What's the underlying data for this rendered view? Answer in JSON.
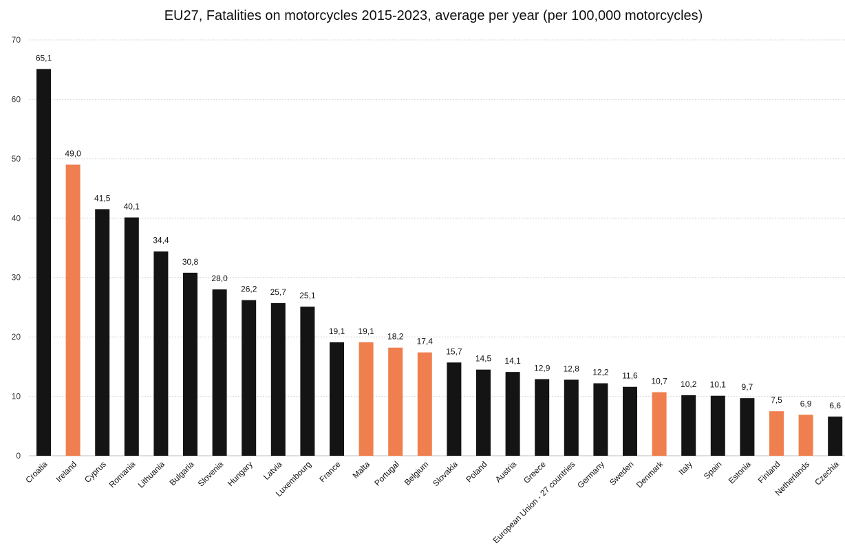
{
  "chart_data": {
    "type": "bar",
    "title": "EU27, Fatalities on motorcycles 2015-2023, average per year  (per 100,000 motorcycles)",
    "xlabel": "",
    "ylabel": "",
    "ylim": [
      0,
      70
    ],
    "yticks": [
      0,
      10,
      20,
      30,
      40,
      50,
      60,
      70
    ],
    "grid": true,
    "legend": "none",
    "categories": [
      "Croatia",
      "Ireland",
      "Cyprus",
      "Romania",
      "Lithuania",
      "Bulgaria",
      "Slovenia",
      "Hungary",
      "Latvia",
      "Luxembourg",
      "France",
      "Malta",
      "Portugal",
      "Belgium",
      "Slovakia",
      "Poland",
      "Austria",
      "Greece",
      "European Union - 27 countries",
      "Germany",
      "Sweden",
      "Denmark",
      "Italy",
      "Spain",
      "Estonia",
      "Finland",
      "Netherlands",
      "Czechia"
    ],
    "values": [
      65.1,
      49.0,
      41.5,
      40.1,
      34.4,
      30.8,
      28.0,
      26.2,
      25.7,
      25.1,
      19.1,
      19.1,
      18.2,
      17.4,
      15.7,
      14.5,
      14.1,
      12.9,
      12.8,
      12.2,
      11.6,
      10.7,
      10.2,
      10.1,
      9.7,
      7.5,
      6.9,
      6.6
    ],
    "value_labels": [
      "65,1",
      "49,0",
      "41,5",
      "40,1",
      "34,4",
      "30,8",
      "28,0",
      "26,2",
      "25,7",
      "25,1",
      "19,1",
      "19,1",
      "18,2",
      "17,4",
      "15,7",
      "14,5",
      "14,1",
      "12,9",
      "12,8",
      "12,2",
      "11,6",
      "10,7",
      "10,2",
      "10,1",
      "9,7",
      "7,5",
      "6,9",
      "6,6"
    ],
    "highlighted": [
      "Ireland",
      "Malta",
      "Portugal",
      "Belgium",
      "Denmark",
      "Finland",
      "Netherlands"
    ],
    "colors": {
      "default": "#141414",
      "highlight": "#f07f4f"
    }
  }
}
